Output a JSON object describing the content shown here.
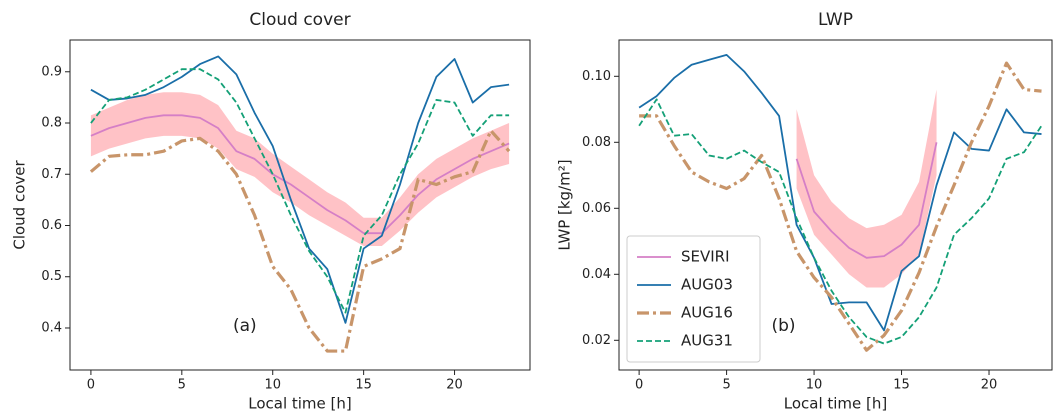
{
  "chart_data": [
    {
      "type": "line",
      "title": "Cloud cover",
      "xlabel": "Local time [h]",
      "ylabel": "Cloud cover",
      "annotation": "(a)",
      "x": [
        0,
        1,
        2,
        3,
        4,
        5,
        6,
        7,
        8,
        9,
        10,
        11,
        12,
        13,
        14,
        15,
        16,
        17,
        18,
        19,
        20,
        21,
        22,
        23
      ],
      "xlim": [
        -1.15,
        24.15
      ],
      "xticks": [
        0,
        5,
        10,
        15,
        20
      ],
      "ylim": [
        0.318,
        0.962
      ],
      "yticks": [
        0.4,
        0.5,
        0.6,
        0.7,
        0.8,
        0.9
      ],
      "band": {
        "color": "#ffb3b8",
        "lower": [
          0.735,
          0.75,
          0.76,
          0.77,
          0.775,
          0.775,
          0.77,
          0.75,
          0.71,
          0.695,
          0.665,
          0.645,
          0.62,
          0.6,
          0.58,
          0.56,
          0.56,
          0.59,
          0.625,
          0.655,
          0.675,
          0.695,
          0.71,
          0.72
        ],
        "upper": [
          0.815,
          0.83,
          0.845,
          0.855,
          0.86,
          0.86,
          0.855,
          0.835,
          0.785,
          0.77,
          0.74,
          0.715,
          0.69,
          0.665,
          0.645,
          0.615,
          0.615,
          0.655,
          0.7,
          0.73,
          0.75,
          0.77,
          0.785,
          0.8
        ]
      },
      "series": [
        {
          "name": "SEVIRI",
          "color": "#d57fc6",
          "linestyle": "solid",
          "linewidth": 1.8,
          "values": [
            0.775,
            0.79,
            0.8,
            0.81,
            0.815,
            0.815,
            0.81,
            0.79,
            0.745,
            0.73,
            0.7,
            0.68,
            0.655,
            0.63,
            0.61,
            0.585,
            0.585,
            0.62,
            0.66,
            0.69,
            0.71,
            0.73,
            0.745,
            0.76
          ]
        },
        {
          "name": "AUG03",
          "color": "#1a6ea8",
          "linestyle": "solid",
          "linewidth": 1.8,
          "values": [
            0.865,
            0.845,
            0.848,
            0.855,
            0.87,
            0.89,
            0.915,
            0.93,
            0.895,
            0.82,
            0.755,
            0.65,
            0.555,
            0.515,
            0.41,
            0.555,
            0.58,
            0.68,
            0.8,
            0.89,
            0.925,
            0.84,
            0.87,
            0.875
          ]
        },
        {
          "name": "AUG16",
          "color": "#c8956a",
          "linestyle": "dashdot",
          "linewidth": 3.2,
          "values": [
            0.705,
            0.735,
            0.738,
            0.738,
            0.745,
            0.765,
            0.77,
            0.745,
            0.7,
            0.62,
            0.52,
            0.475,
            0.4,
            0.355,
            0.355,
            0.52,
            0.535,
            0.555,
            0.69,
            0.68,
            0.695,
            0.705,
            0.785,
            0.745
          ]
        },
        {
          "name": "AUG31",
          "color": "#14a077",
          "linestyle": "dashed",
          "linewidth": 1.8,
          "values": [
            0.8,
            0.845,
            0.85,
            0.865,
            0.885,
            0.905,
            0.905,
            0.885,
            0.84,
            0.77,
            0.7,
            0.62,
            0.55,
            0.5,
            0.43,
            0.58,
            0.62,
            0.7,
            0.76,
            0.845,
            0.84,
            0.775,
            0.815,
            0.815
          ]
        }
      ]
    },
    {
      "type": "line",
      "title": "LWP",
      "xlabel": "Local time [h]",
      "ylabel": "LWP [kg/m²]",
      "annotation": "(b)",
      "legend": "lower left",
      "x": [
        0,
        1,
        2,
        3,
        4,
        5,
        6,
        7,
        8,
        9,
        10,
        11,
        12,
        13,
        14,
        15,
        16,
        17,
        18,
        19,
        20,
        21,
        22,
        23
      ],
      "xlim": [
        -1.15,
        23.6
      ],
      "xticks": [
        0,
        5,
        10,
        15,
        20
      ],
      "ylim": [
        0.011,
        0.111
      ],
      "yticks": [
        0.02,
        0.04,
        0.06,
        0.08,
        {
          "value": 0.1,
          "label": "0.10"
        }
      ],
      "band": {
        "color": "#ffb3b8",
        "lower": [
          null,
          null,
          null,
          null,
          null,
          null,
          null,
          null,
          null,
          0.066,
          0.052,
          0.046,
          0.04,
          0.036,
          0.036,
          0.04,
          0.046,
          0.07,
          null,
          null,
          null,
          null,
          null,
          null
        ],
        "upper": [
          null,
          null,
          null,
          null,
          null,
          null,
          null,
          null,
          null,
          0.09,
          0.07,
          0.062,
          0.057,
          0.054,
          0.055,
          0.058,
          0.068,
          0.096,
          null,
          null,
          null,
          null,
          null,
          null
        ]
      },
      "series": [
        {
          "name": "SEVIRI",
          "color": "#d57fc6",
          "linestyle": "solid",
          "linewidth": 1.8,
          "values": [
            null,
            null,
            null,
            null,
            null,
            null,
            null,
            null,
            null,
            0.075,
            0.059,
            0.053,
            0.048,
            0.045,
            0.0455,
            0.049,
            0.055,
            0.08,
            null,
            null,
            null,
            null,
            null,
            null
          ]
        },
        {
          "name": "AUG03",
          "color": "#1a6ea8",
          "linestyle": "solid",
          "linewidth": 1.8,
          "values": [
            0.0905,
            0.094,
            0.0995,
            0.1035,
            0.105,
            0.1065,
            0.1015,
            0.095,
            0.088,
            0.055,
            0.045,
            0.031,
            0.0315,
            0.0315,
            0.023,
            0.041,
            0.0455,
            0.067,
            0.083,
            0.078,
            0.0775,
            0.09,
            0.083,
            0.0825
          ]
        },
        {
          "name": "AUG16",
          "color": "#c8956a",
          "linestyle": "dashdot",
          "linewidth": 3.2,
          "values": [
            0.088,
            0.088,
            0.079,
            0.071,
            0.068,
            0.066,
            0.069,
            0.076,
            0.063,
            0.047,
            0.039,
            0.033,
            0.025,
            0.017,
            0.0215,
            0.029,
            0.0405,
            0.0545,
            0.067,
            0.08,
            0.091,
            0.104,
            0.096,
            0.0955
          ]
        },
        {
          "name": "AUG31",
          "color": "#14a077",
          "linestyle": "dashed",
          "linewidth": 1.8,
          "values": [
            0.085,
            0.093,
            0.082,
            0.0825,
            0.076,
            0.075,
            0.0775,
            0.074,
            0.071,
            0.057,
            0.045,
            0.035,
            0.027,
            0.021,
            0.019,
            0.021,
            0.027,
            0.036,
            0.052,
            0.057,
            0.063,
            0.075,
            0.077,
            0.085
          ]
        }
      ]
    }
  ]
}
